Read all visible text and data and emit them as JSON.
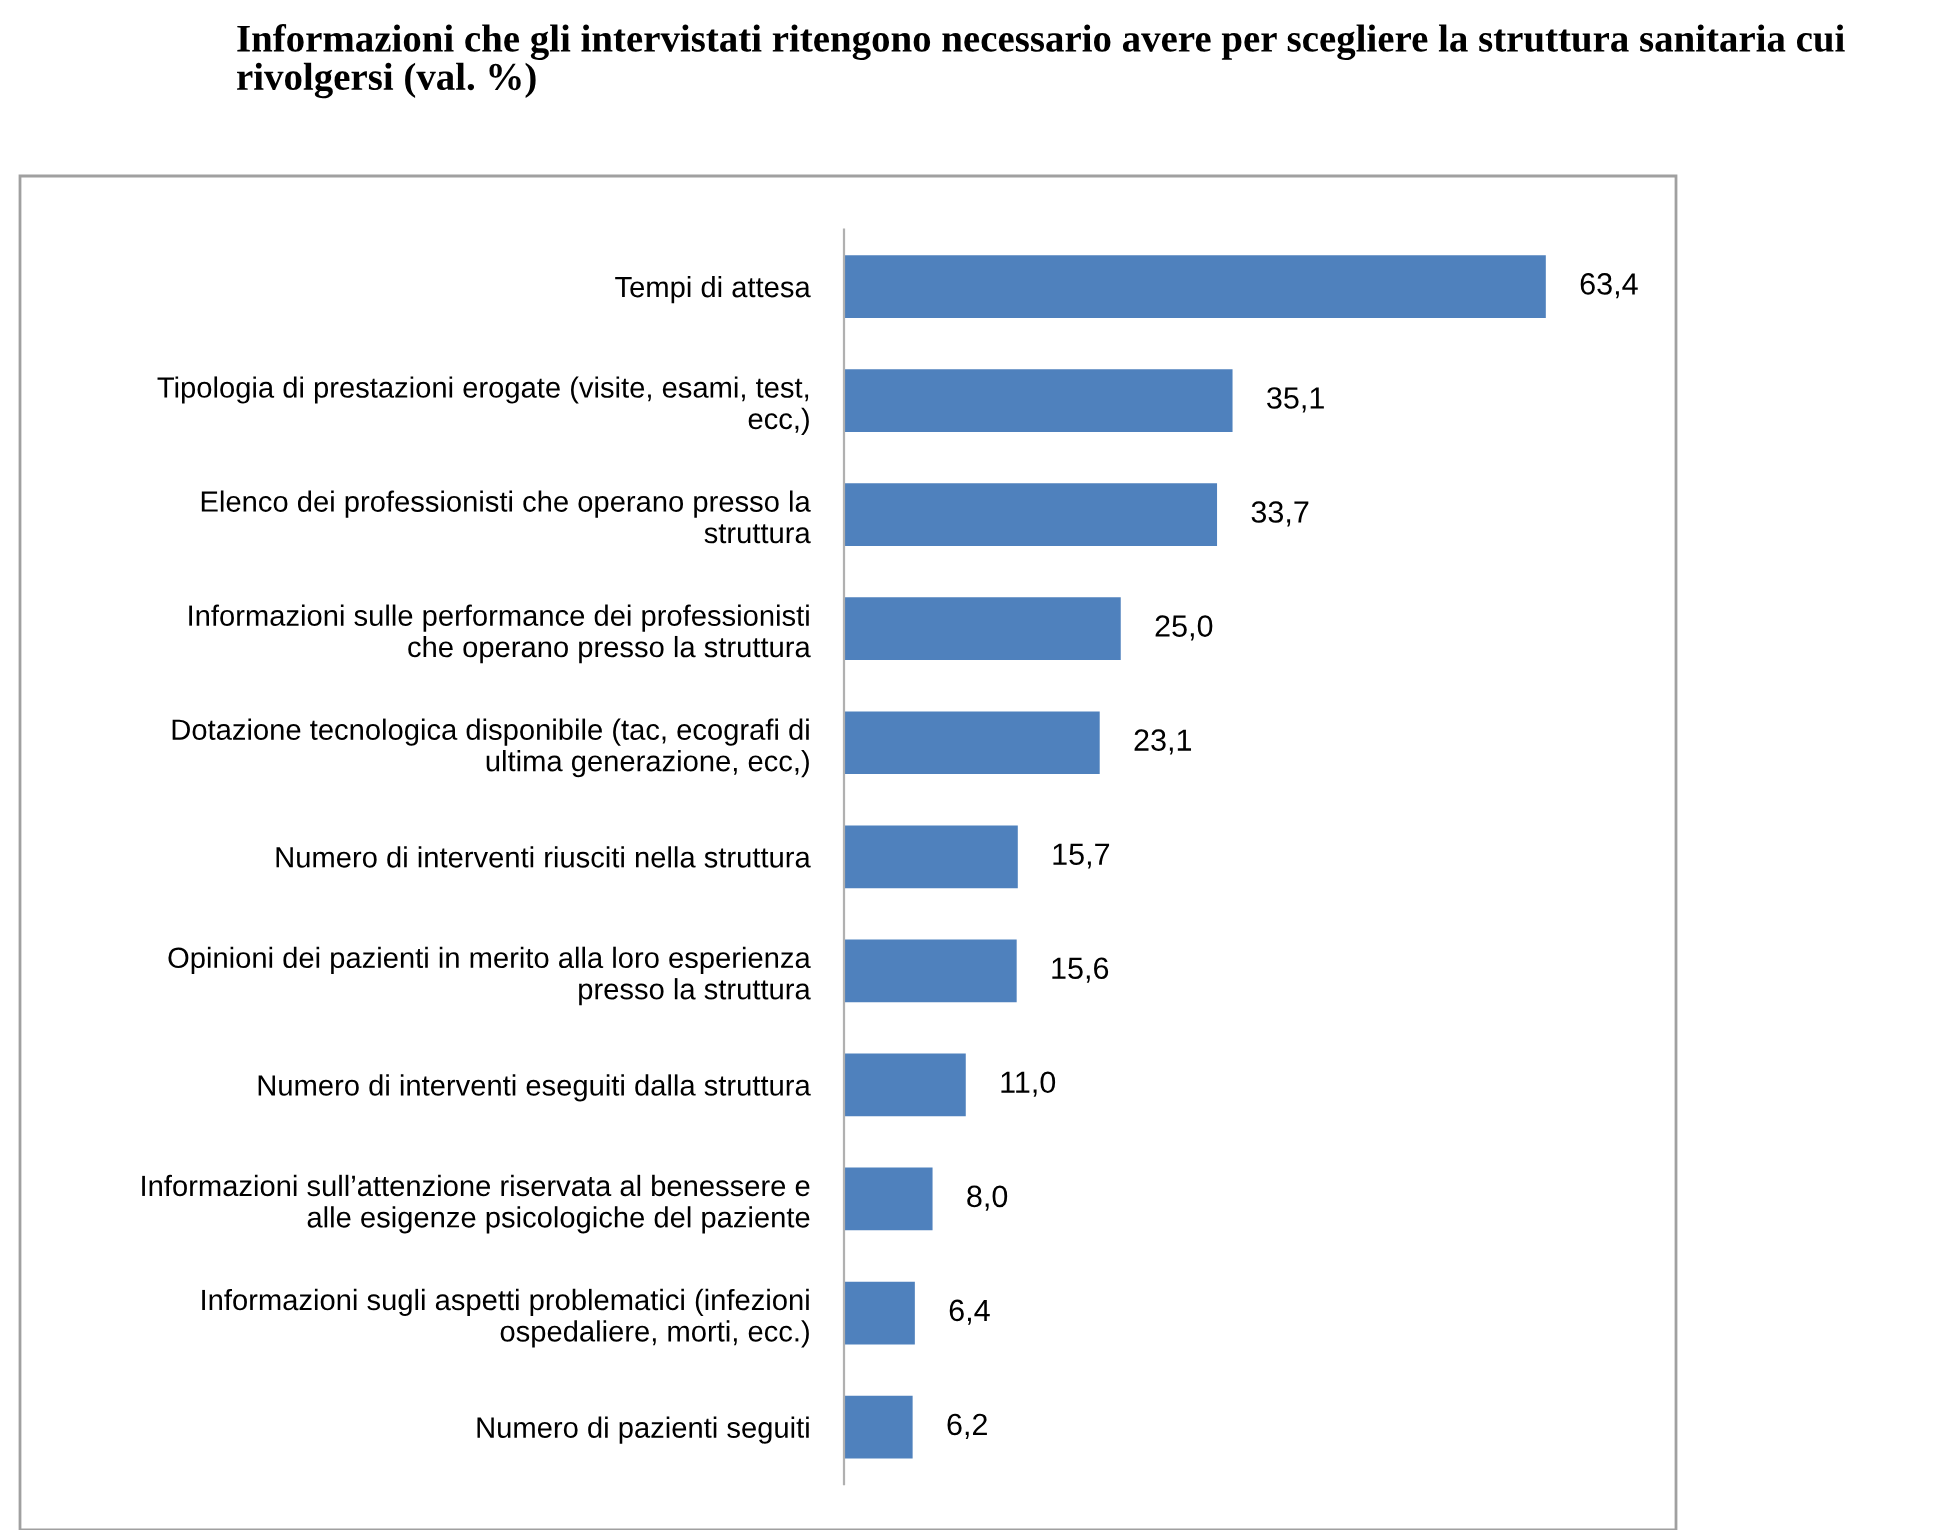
{
  "chart_data": {
    "type": "bar",
    "orientation": "horizontal",
    "title": "Informazioni che gli intervistati ritengono necessario avere per scegliere la struttura sanitaria cui rivolgersi (val. %)",
    "categories": [
      "Tempi di attesa",
      "Tipologia di prestazioni erogate (visite, esami, test,\necc,)",
      "Elenco dei professionisti che operano presso la\nstruttura",
      "Informazioni sulle performance dei professionisti\nche operano presso la struttura",
      "Dotazione tecnologica disponibile (tac, ecografi di\nultima generazione, ecc,)",
      "Numero di interventi riusciti nella struttura",
      "Opinioni dei pazienti in merito alla loro esperienza\npresso la struttura",
      "Numero di interventi eseguiti dalla struttura",
      "Informazioni sull’attenzione riservata al benessere e\nalle esigenze psicologiche del paziente",
      "Informazioni sugli aspetti problematici (infezioni\nospedaliere, morti, ecc.)",
      "Numero di pazienti seguiti"
    ],
    "values": [
      63.4,
      35.1,
      33.7,
      25.0,
      23.1,
      15.7,
      15.6,
      11.0,
      8.0,
      6.4,
      6.2
    ],
    "value_labels": [
      "63,4",
      "35,1",
      "33,7",
      "25,0",
      "23,1",
      "15,7",
      "15,6",
      "11,0",
      "8,0",
      "6,4",
      "6,2"
    ],
    "color": "#4f81bd",
    "grid": false,
    "legend": false
  }
}
